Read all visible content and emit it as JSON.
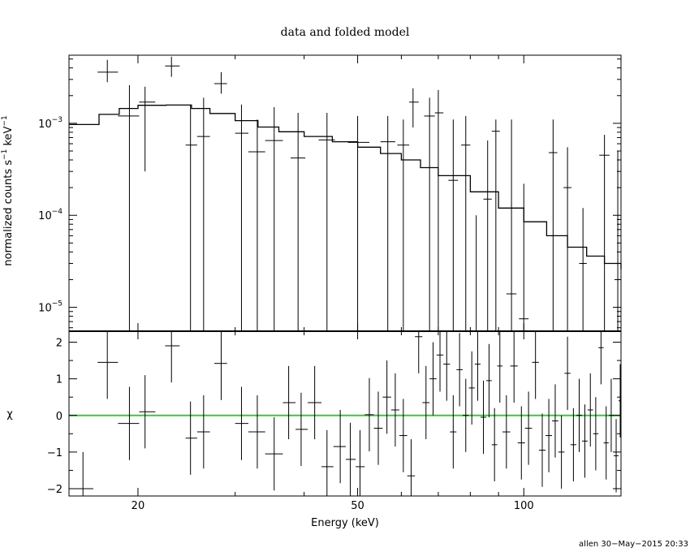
{
  "chart_data": [
    {
      "panel": "top",
      "type": "scatter",
      "title": "data and folded model",
      "ylabel": "normalized counts s",
      "ylabel_sup1": "−1",
      "ylabel_unit": "keV",
      "ylabel_sup2": "−1",
      "xscale": "log",
      "yscale": "log",
      "xlim": [
        15,
        150
      ],
      "ylim": [
        5.5e-06,
        0.0055
      ],
      "yticks": [
        {
          "value": 0.001,
          "mant": "10",
          "exp": "−3"
        },
        {
          "value": 0.0001,
          "mant": "10",
          "exp": "−4"
        },
        {
          "value": 1e-05,
          "mant": "10",
          "exp": "−5"
        }
      ],
      "points": [
        {
          "x": 17.6,
          "xerr": [
            16.9,
            18.4
          ],
          "y": 0.0036,
          "ylo": 0.0028,
          "yhi": 0.0049
        },
        {
          "x": 19.3,
          "xerr": [
            18.4,
            20.1
          ],
          "y": 0.0012,
          "ylo": 5.5e-06,
          "yhi": 0.0026
        },
        {
          "x": 20.6,
          "xerr": [
            20.1,
            21.5
          ],
          "y": 0.0017,
          "ylo": 0.0003,
          "yhi": 0.0025
        },
        {
          "x": 23.0,
          "xerr": [
            22.4,
            23.8
          ],
          "y": 0.0042,
          "ylo": 0.0032,
          "yhi": 0.0053
        },
        {
          "x": 24.9,
          "xerr": [
            24.4,
            25.6
          ],
          "y": 0.00058,
          "ylo": 5.5e-06,
          "yhi": 0.0016
        },
        {
          "x": 26.3,
          "xerr": [
            25.6,
            27.0
          ],
          "y": 0.00072,
          "ylo": 5.5e-06,
          "yhi": 0.0019
        },
        {
          "x": 28.3,
          "xerr": [
            27.5,
            29.0
          ],
          "y": 0.0027,
          "ylo": 0.0021,
          "yhi": 0.0036
        },
        {
          "x": 30.8,
          "xerr": [
            30.0,
            31.7
          ],
          "y": 0.00078,
          "ylo": 5.5e-06,
          "yhi": 0.0016
        },
        {
          "x": 32.9,
          "xerr": [
            31.7,
            34.0
          ],
          "y": 0.00049,
          "ylo": 5.5e-06,
          "yhi": 0.0011
        },
        {
          "x": 35.3,
          "xerr": [
            34.0,
            36.6
          ],
          "y": 0.00065,
          "ylo": 5.5e-06,
          "yhi": 0.0015
        },
        {
          "x": 39.0,
          "xerr": [
            37.8,
            40.2
          ],
          "y": 0.00042,
          "ylo": 5.5e-06,
          "yhi": 0.0013
        },
        {
          "x": 44.0,
          "xerr": [
            42.5,
            45.5
          ],
          "y": 0.00066,
          "ylo": 5.5e-06,
          "yhi": 0.0013
        },
        {
          "x": 50.0,
          "xerr": [
            48.0,
            52.5
          ],
          "y": 0.00062,
          "ylo": 5.5e-06,
          "yhi": 0.0012
        },
        {
          "x": 56.7,
          "xerr": [
            55.0,
            58.5
          ],
          "y": 0.00063,
          "ylo": 5.5e-06,
          "yhi": 0.0012
        },
        {
          "x": 60.5,
          "xerr": [
            59.0,
            62.0
          ],
          "y": 0.00058,
          "ylo": 5.5e-06,
          "yhi": 0.0011
        },
        {
          "x": 63.0,
          "xerr": [
            62.0,
            64.5
          ],
          "y": 0.0017,
          "ylo": 0.0009,
          "yhi": 0.0024
        },
        {
          "x": 67.5,
          "xerr": [
            66.0,
            69.0
          ],
          "y": 0.0012,
          "ylo": 5.5e-06,
          "yhi": 0.0019
        },
        {
          "x": 70.0,
          "xerr": [
            69.0,
            71.5
          ],
          "y": 0.0013,
          "ylo": 5.5e-06,
          "yhi": 0.0023
        },
        {
          "x": 74.5,
          "xerr": [
            73.0,
            76.0
          ],
          "y": 0.00024,
          "ylo": 5.5e-06,
          "yhi": 0.0011
        },
        {
          "x": 78.5,
          "xerr": [
            77.0,
            80.0
          ],
          "y": 0.00058,
          "ylo": 5.5e-06,
          "yhi": 0.0012
        },
        {
          "x": 82.0,
          "xerr": [
            80.5,
            83.5
          ],
          "y": 5.5e-06,
          "ylo": 5.5e-06,
          "yhi": 0.0001
        },
        {
          "x": 86.0,
          "xerr": [
            84.5,
            87.5
          ],
          "y": 0.00015,
          "ylo": 5.5e-06,
          "yhi": 0.00065
        },
        {
          "x": 89.0,
          "xerr": [
            87.5,
            90.5
          ],
          "y": 0.00082,
          "ylo": 5.5e-06,
          "yhi": 0.0011
        },
        {
          "x": 95.0,
          "xerr": [
            93.0,
            97.0
          ],
          "y": 1.4e-05,
          "ylo": 5.5e-06,
          "yhi": 0.0011
        },
        {
          "x": 100.0,
          "xerr": [
            98.0,
            102.0
          ],
          "y": 7.5e-06,
          "ylo": 5.5e-06,
          "yhi": 0.00022
        },
        {
          "x": 113.0,
          "xerr": [
            111.0,
            115.0
          ],
          "y": 0.00048,
          "ylo": 5.5e-06,
          "yhi": 0.0011
        },
        {
          "x": 120.0,
          "xerr": [
            118.0,
            122.0
          ],
          "y": 0.0002,
          "ylo": 5.5e-06,
          "yhi": 0.00055
        },
        {
          "x": 128.0,
          "xerr": [
            126.0,
            130.0
          ],
          "y": 3e-05,
          "ylo": 5.5e-06,
          "yhi": 0.00012
        },
        {
          "x": 140.0,
          "xerr": [
            137.0,
            143.0
          ],
          "y": 0.00045,
          "ylo": 5.5e-06,
          "yhi": 0.00075
        },
        {
          "x": 148.0,
          "xerr": [
            146.0,
            150.0
          ],
          "y": 2e-05,
          "ylo": 5.5e-06,
          "yhi": 0.0005
        }
      ],
      "model": [
        [
          15.0,
          0.00097
        ],
        [
          17.0,
          0.00125
        ],
        [
          18.5,
          0.00145
        ],
        [
          20.0,
          0.00157
        ],
        [
          22.5,
          0.00158
        ],
        [
          25.0,
          0.00145
        ],
        [
          27.0,
          0.00128
        ],
        [
          30.0,
          0.00107
        ],
        [
          33.0,
          0.00091
        ],
        [
          36.0,
          0.00081
        ],
        [
          40.0,
          0.00072
        ],
        [
          45.0,
          0.00063
        ],
        [
          50.0,
          0.00055
        ],
        [
          55.0,
          0.00047
        ],
        [
          60.0,
          0.0004
        ],
        [
          65.0,
          0.00033
        ],
        [
          70.0,
          0.00027
        ],
        [
          80.0,
          0.00018
        ],
        [
          90.0,
          0.00012
        ],
        [
          100.0,
          8.5e-05
        ],
        [
          110.0,
          6e-05
        ],
        [
          120.0,
          4.5e-05
        ],
        [
          130.0,
          3.6e-05
        ],
        [
          140.0,
          3e-05
        ],
        [
          150.0,
          2.6e-05
        ]
      ]
    },
    {
      "panel": "bottom",
      "type": "scatter",
      "xlabel": "Energy (keV)",
      "ylabel": "χ",
      "xscale": "log",
      "xlim": [
        15,
        150
      ],
      "ylim": [
        -2.2,
        2.3
      ],
      "xticks": [
        20,
        50,
        100
      ],
      "yticks": [
        2,
        1,
        0,
        -1,
        -2
      ],
      "ytick_labels": [
        "2",
        "1",
        "0",
        "−1",
        "−2"
      ],
      "zero_line_color": "#33cc33",
      "residuals": [
        {
          "x": 15.9,
          "xerr": [
            15.0,
            16.6
          ],
          "y": -2.0,
          "yerr": 1.0
        },
        {
          "x": 17.6,
          "xerr": [
            16.9,
            18.4
          ],
          "y": 1.45,
          "yerr": 1.0
        },
        {
          "x": 19.3,
          "xerr": [
            18.4,
            20.1
          ],
          "y": -0.22,
          "yerr": 1.0
        },
        {
          "x": 20.6,
          "xerr": [
            20.1,
            21.5
          ],
          "y": 0.1,
          "yerr": 1.0
        },
        {
          "x": 23.0,
          "xerr": [
            22.4,
            23.8
          ],
          "y": 1.9,
          "yerr": 1.0
        },
        {
          "x": 24.9,
          "xerr": [
            24.4,
            25.6
          ],
          "y": -0.62,
          "yerr": 1.0
        },
        {
          "x": 26.3,
          "xerr": [
            25.6,
            27.0
          ],
          "y": -0.45,
          "yerr": 1.0
        },
        {
          "x": 28.3,
          "xerr": [
            27.5,
            29.0
          ],
          "y": 1.42,
          "yerr": 1.0
        },
        {
          "x": 30.8,
          "xerr": [
            30.0,
            31.7
          ],
          "y": -0.22,
          "yerr": 1.0
        },
        {
          "x": 32.9,
          "xerr": [
            31.7,
            34.0
          ],
          "y": -0.45,
          "yerr": 1.0
        },
        {
          "x": 35.3,
          "xerr": [
            34.0,
            36.6
          ],
          "y": -1.05,
          "yerr": 1.0
        },
        {
          "x": 37.5,
          "xerr": [
            36.6,
            38.6
          ],
          "y": 0.35,
          "yerr": 1.0
        },
        {
          "x": 39.5,
          "xerr": [
            38.6,
            40.6
          ],
          "y": -0.38,
          "yerr": 1.0
        },
        {
          "x": 41.8,
          "xerr": [
            40.6,
            43.0
          ],
          "y": 0.35,
          "yerr": 1.0
        },
        {
          "x": 44.0,
          "xerr": [
            43.0,
            45.2
          ],
          "y": -1.4,
          "yerr": 1.0
        },
        {
          "x": 46.5,
          "xerr": [
            45.2,
            47.6
          ],
          "y": -0.85,
          "yerr": 1.0
        },
        {
          "x": 48.5,
          "xerr": [
            47.6,
            49.6
          ],
          "y": -1.2,
          "yerr": 1.0
        },
        {
          "x": 50.5,
          "xerr": [
            49.6,
            51.5
          ],
          "y": -1.4,
          "yerr": 1.0
        },
        {
          "x": 52.5,
          "xerr": [
            51.5,
            53.5
          ],
          "y": 0.02,
          "yerr": 1.0
        },
        {
          "x": 54.5,
          "xerr": [
            53.5,
            55.5
          ],
          "y": -0.35,
          "yerr": 1.0
        },
        {
          "x": 56.5,
          "xerr": [
            55.5,
            57.5
          ],
          "y": 0.5,
          "yerr": 1.0
        },
        {
          "x": 58.5,
          "xerr": [
            57.5,
            59.5
          ],
          "y": 0.15,
          "yerr": 1.0
        },
        {
          "x": 60.5,
          "xerr": [
            59.5,
            61.5
          ],
          "y": -0.55,
          "yerr": 1.0
        },
        {
          "x": 62.5,
          "xerr": [
            61.5,
            63.5
          ],
          "y": -1.65,
          "yerr": 1.0
        },
        {
          "x": 64.5,
          "xerr": [
            63.5,
            65.5
          ],
          "y": 2.15,
          "yerr": 1.0
        },
        {
          "x": 66.5,
          "xerr": [
            65.5,
            67.5
          ],
          "y": 0.35,
          "yerr": 1.0
        },
        {
          "x": 68.5,
          "xerr": [
            67.5,
            69.5
          ],
          "y": 1.0,
          "yerr": 1.0
        },
        {
          "x": 70.5,
          "xerr": [
            69.5,
            71.5
          ],
          "y": 1.65,
          "yerr": 1.0
        },
        {
          "x": 72.5,
          "xerr": [
            71.5,
            73.5
          ],
          "y": 1.4,
          "yerr": 1.0
        },
        {
          "x": 74.5,
          "xerr": [
            73.5,
            75.5
          ],
          "y": -0.45,
          "yerr": 1.0
        },
        {
          "x": 76.5,
          "xerr": [
            75.5,
            77.5
          ],
          "y": 1.25,
          "yerr": 1.0
        },
        {
          "x": 78.5,
          "xerr": [
            77.5,
            79.5
          ],
          "y": 0.0,
          "yerr": 1.0
        },
        {
          "x": 80.5,
          "xerr": [
            79.5,
            81.5
          ],
          "y": 0.75,
          "yerr": 1.0
        },
        {
          "x": 82.5,
          "xerr": [
            81.5,
            83.5
          ],
          "y": 1.4,
          "yerr": 1.0
        },
        {
          "x": 84.5,
          "xerr": [
            83.5,
            85.5
          ],
          "y": -0.05,
          "yerr": 1.0
        },
        {
          "x": 86.5,
          "xerr": [
            85.5,
            87.5
          ],
          "y": 0.95,
          "yerr": 1.0
        },
        {
          "x": 88.5,
          "xerr": [
            87.5,
            89.5
          ],
          "y": -0.8,
          "yerr": 1.0
        },
        {
          "x": 90.5,
          "xerr": [
            89.5,
            91.5
          ],
          "y": 1.35,
          "yerr": 1.0
        },
        {
          "x": 93.0,
          "xerr": [
            91.5,
            94.5
          ],
          "y": -0.45,
          "yerr": 1.0
        },
        {
          "x": 96.0,
          "xerr": [
            94.5,
            97.5
          ],
          "y": 1.35,
          "yerr": 1.0
        },
        {
          "x": 99.0,
          "xerr": [
            97.5,
            100.5
          ],
          "y": -0.75,
          "yerr": 1.0
        },
        {
          "x": 102.0,
          "xerr": [
            100.5,
            103.5
          ],
          "y": -0.35,
          "yerr": 1.0
        },
        {
          "x": 105.0,
          "xerr": [
            103.5,
            106.5
          ],
          "y": 1.45,
          "yerr": 1.0
        },
        {
          "x": 108.0,
          "xerr": [
            106.5,
            109.5
          ],
          "y": -0.95,
          "yerr": 1.0
        },
        {
          "x": 111.0,
          "xerr": [
            109.5,
            112.5
          ],
          "y": -0.55,
          "yerr": 1.0
        },
        {
          "x": 114.0,
          "xerr": [
            112.5,
            115.5
          ],
          "y": -0.15,
          "yerr": 1.0
        },
        {
          "x": 117.0,
          "xerr": [
            115.5,
            118.5
          ],
          "y": -1.0,
          "yerr": 1.0
        },
        {
          "x": 120.0,
          "xerr": [
            118.5,
            121.5
          ],
          "y": 1.15,
          "yerr": 1.0
        },
        {
          "x": 123.0,
          "xerr": [
            121.5,
            124.5
          ],
          "y": -0.8,
          "yerr": 1.0
        },
        {
          "x": 126.0,
          "xerr": [
            124.5,
            127.5
          ],
          "y": 0.0,
          "yerr": 1.0
        },
        {
          "x": 129.0,
          "xerr": [
            127.5,
            130.5
          ],
          "y": -0.7,
          "yerr": 1.0
        },
        {
          "x": 132.0,
          "xerr": [
            130.5,
            133.5
          ],
          "y": 0.15,
          "yerr": 1.0
        },
        {
          "x": 135.0,
          "xerr": [
            133.5,
            136.5
          ],
          "y": -0.5,
          "yerr": 1.0
        },
        {
          "x": 138.0,
          "xerr": [
            136.5,
            139.5
          ],
          "y": 1.85,
          "yerr": 1.0
        },
        {
          "x": 141.0,
          "xerr": [
            139.5,
            142.5
          ],
          "y": -0.75,
          "yerr": 1.0
        },
        {
          "x": 144.0,
          "xerr": [
            142.5,
            145.5
          ],
          "y": 0.0,
          "yerr": 1.0
        },
        {
          "x": 147.0,
          "xerr": [
            145.5,
            148.5
          ],
          "y": -1.1,
          "yerr": 1.0
        },
        {
          "x": 149.5,
          "xerr": [
            148.5,
            150.0
          ],
          "y": 0.4,
          "yerr": 1.0
        }
      ]
    }
  ],
  "footer": "allen 30−May−2015 20:33"
}
